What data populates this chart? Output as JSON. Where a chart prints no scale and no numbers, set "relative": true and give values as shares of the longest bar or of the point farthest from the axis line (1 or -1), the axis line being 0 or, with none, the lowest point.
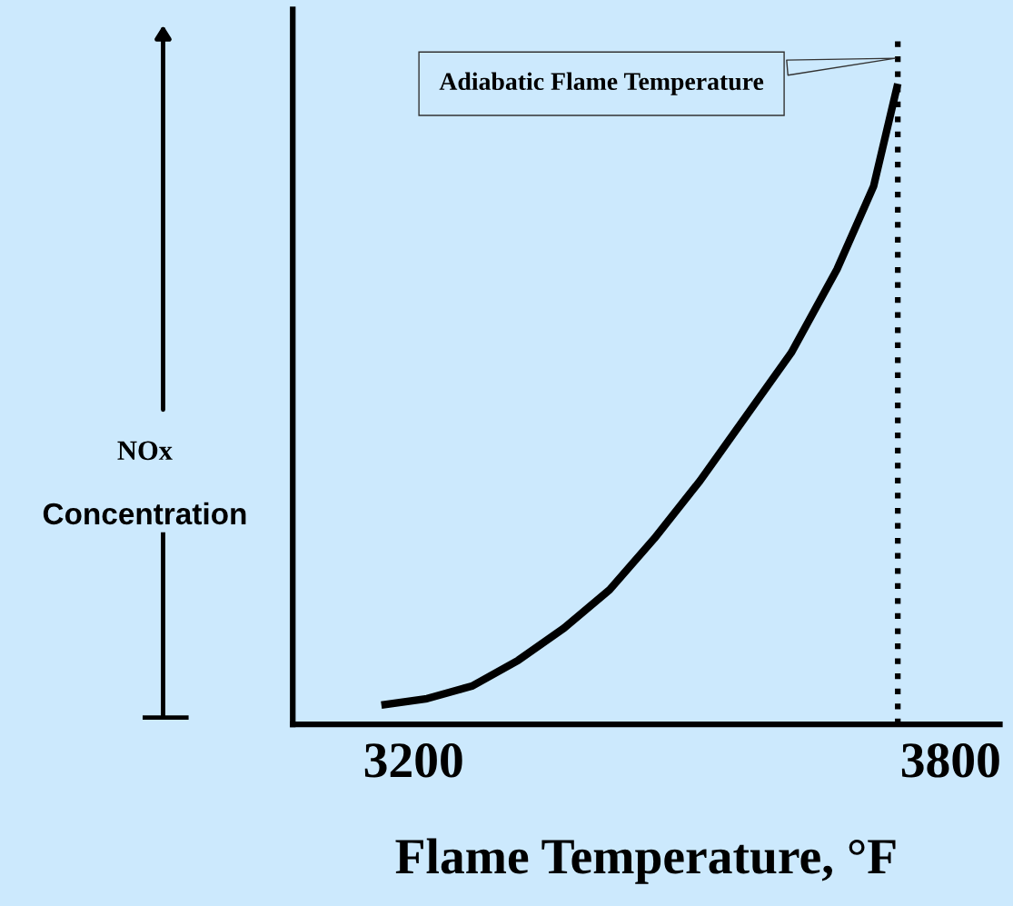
{
  "chart_data": {
    "type": "line",
    "xlabel": "Flame Temperature, °F",
    "ylabel": "NOx\nConcentration",
    "relative": true,
    "x": [
      3164,
      3215,
      3266,
      3317,
      3368,
      3419,
      3469,
      3520,
      3571,
      3622,
      3673,
      3714,
      3741
    ],
    "series": [
      {
        "color": "#000000",
        "values": [
          0.03,
          0.04,
          0.06,
          0.1,
          0.15,
          0.21,
          0.29,
          0.38,
          0.48,
          0.58,
          0.71,
          0.84,
          1.0
        ]
      }
    ],
    "xlim": [
      3065,
      3855
    ],
    "xticks": [
      3200,
      3800
    ],
    "ref_lines": [
      {
        "axis": "x",
        "value": 3741,
        "label": "Adiabatic Flame Temperature",
        "color": "#000000",
        "line_style": "dotted"
      }
    ],
    "grid": false,
    "marker": "none",
    "line_style": "solid"
  }
}
